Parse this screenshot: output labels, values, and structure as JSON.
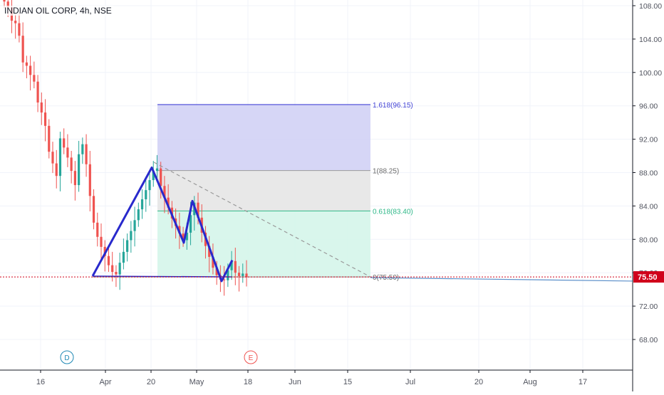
{
  "header": {
    "title": "INDIAN OIL CORP, 4h, NSE"
  },
  "colors": {
    "up": "#26a69a",
    "down": "#ef5350",
    "pattern": "#2829cc",
    "fib_1618_fill": "#d1d1f5",
    "fib_1618_line": "#4545d6",
    "fib_1_fill": "#e6e6e6",
    "fib_1_line": "#9a9a9a",
    "fib_0618_fill": "#d5f5ea",
    "fib_0618_line": "#2eb888",
    "price_line": "#d0021b",
    "axis_text": "#50535e",
    "marker_d": "#1e88b4",
    "marker_e": "#ef5350"
  },
  "axes": {
    "y_ticks": [
      "108.00",
      "104.00",
      "100.00",
      "96.00",
      "92.00",
      "88.00",
      "84.00",
      "80.00",
      "76.00",
      "72.00",
      "68.00"
    ],
    "x_ticks": [
      "16",
      "Apr",
      "20",
      "May",
      "18",
      "Jun",
      "15",
      "Jul",
      "20",
      "Aug",
      "17"
    ],
    "current_price": "75.50"
  },
  "fib_labels": {
    "l1618": "1.618(96.15)",
    "l1": "1(88.25)",
    "l0618": "0.618(83.40)",
    "l0": "0(75.50)"
  },
  "markers": {
    "d": "D",
    "e": "E"
  },
  "chart_data": {
    "type": "candlestick",
    "title": "INDIAN OIL CORP, 4h, NSE",
    "ylim": [
      64,
      110
    ],
    "y_scale": "linear",
    "grid": true,
    "last_price": 75.5,
    "fibonacci_extension": [
      {
        "level": 1.618,
        "price": 96.15
      },
      {
        "level": 1,
        "price": 88.25
      },
      {
        "level": 0.618,
        "price": 83.4
      },
      {
        "level": 0,
        "price": 75.5
      }
    ],
    "pattern_points": [
      {
        "date": "Mar 27",
        "price": 75.6
      },
      {
        "date": "Apr 20",
        "price": 88.6
      },
      {
        "date": "Apr 29",
        "price": 79.6
      },
      {
        "date": "Apr 30",
        "price": 84.6
      },
      {
        "date": "May 11",
        "price": 75.0
      },
      {
        "date": "May 14",
        "price": 77.5
      }
    ],
    "approx_closes": [
      108.5,
      107.8,
      106.2,
      105.9,
      104.4,
      101.2,
      100.8,
      99.7,
      98.9,
      96.4,
      95.2,
      93.6,
      90.5,
      89.1,
      87.6,
      92.1,
      91.0,
      89.8,
      88.2,
      86.5,
      90.2,
      91.4,
      89.0,
      85.2,
      82.0,
      80.3,
      79.1,
      78.0,
      76.9,
      76.1,
      75.8,
      77.2,
      78.5,
      79.9,
      81.0,
      82.3,
      83.6,
      84.8,
      85.9,
      87.1,
      88.2,
      88.5,
      86.4,
      85.0,
      83.8,
      82.5,
      81.6,
      80.7,
      79.9,
      80.8,
      82.9,
      84.4,
      82.6,
      80.8,
      79.2,
      77.9,
      76.6,
      75.7,
      75.2,
      75.1,
      76.3,
      77.4,
      76.0,
      75.6,
      75.9,
      75.5
    ]
  }
}
